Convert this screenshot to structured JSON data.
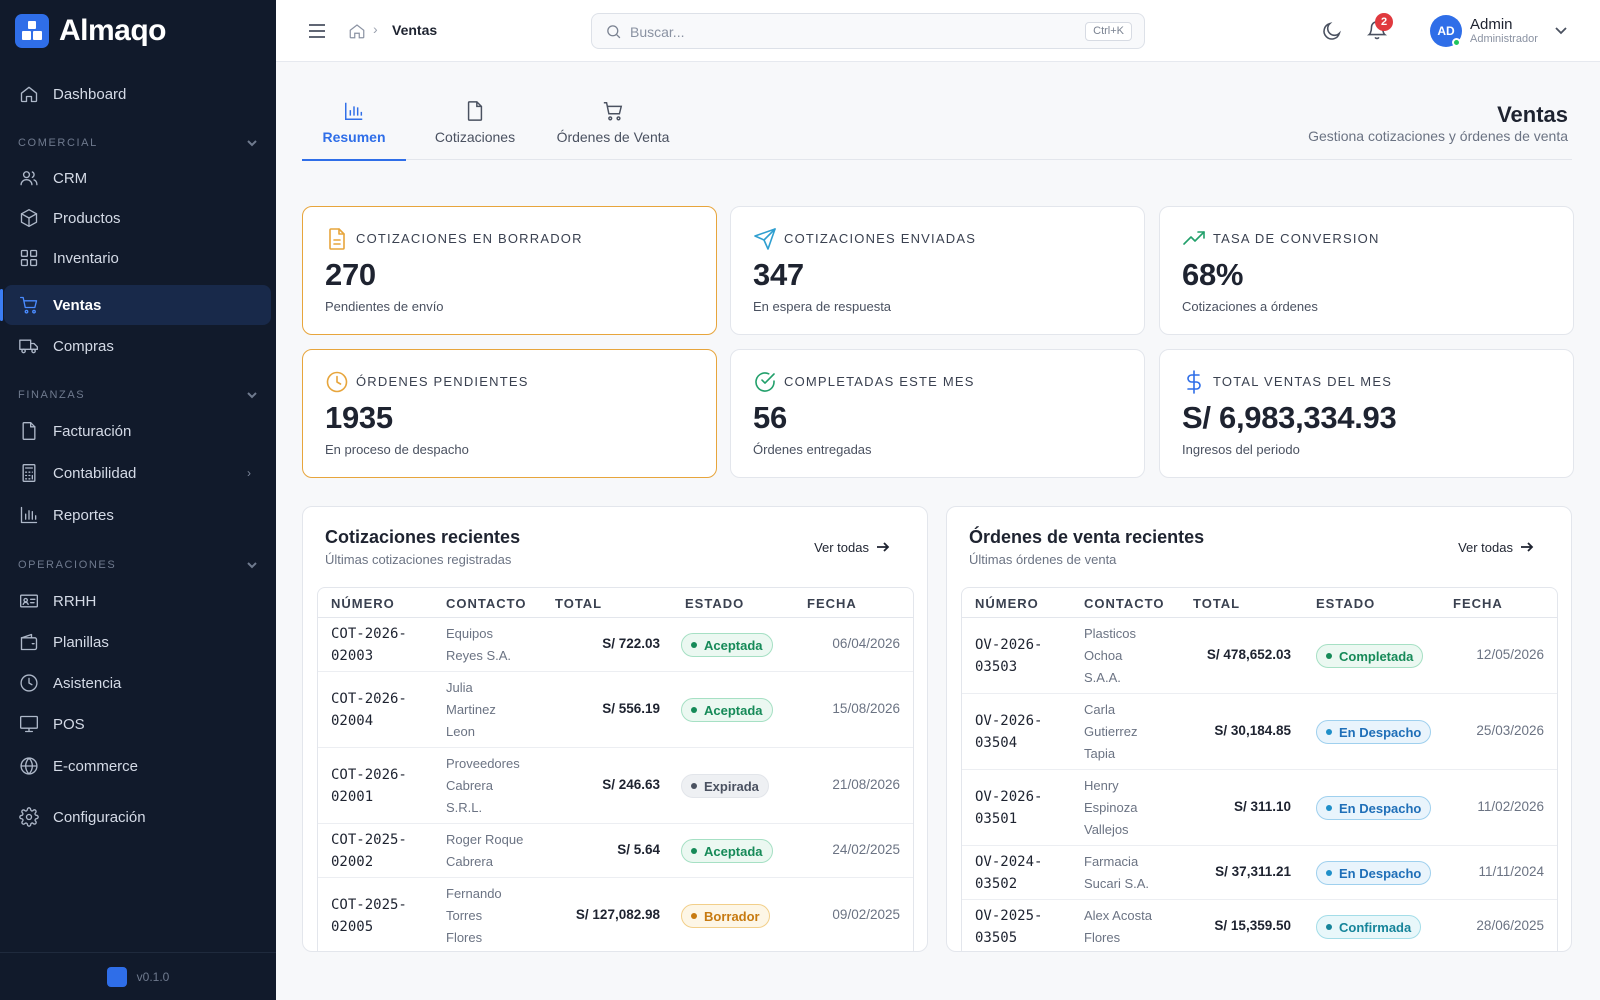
{
  "app": {
    "name": "Almaqo",
    "version": "v0.1.0"
  },
  "sidebar": {
    "items": [
      {
        "key": "dashboard",
        "label": "Dashboard",
        "icon": "home-icon"
      },
      {
        "key": "crm",
        "label": "CRM",
        "icon": "users-icon"
      },
      {
        "key": "productos",
        "label": "Productos",
        "icon": "box-icon"
      },
      {
        "key": "inventario",
        "label": "Inventario",
        "icon": "grid-icon"
      },
      {
        "key": "ventas",
        "label": "Ventas",
        "icon": "cart-icon",
        "active": true
      },
      {
        "key": "compras",
        "label": "Compras",
        "icon": "truck-icon"
      },
      {
        "key": "facturacion",
        "label": "Facturación",
        "icon": "file-icon"
      },
      {
        "key": "contabilidad",
        "label": "Contabilidad",
        "icon": "calculator-icon"
      },
      {
        "key": "reportes",
        "label": "Reportes",
        "icon": "bar-chart-icon"
      },
      {
        "key": "rrhh",
        "label": "RRHH",
        "icon": "id-card-icon"
      },
      {
        "key": "planillas",
        "label": "Planillas",
        "icon": "wallet-icon"
      },
      {
        "key": "asistencia",
        "label": "Asistencia",
        "icon": "clock-icon"
      },
      {
        "key": "pos",
        "label": "POS",
        "icon": "monitor-icon"
      },
      {
        "key": "ecommerce",
        "label": "E-commerce",
        "icon": "globe-icon"
      },
      {
        "key": "configuracion",
        "label": "Configuración",
        "icon": "gear-icon"
      }
    ],
    "sections": {
      "comercial": "COMERCIAL",
      "finanzas": "FINANZAS",
      "operaciones": "OPERACIONES"
    }
  },
  "topbar": {
    "breadcrumb_current": "Ventas",
    "search_placeholder": "Buscar...",
    "search_shortcut": "Ctrl+K",
    "notifications_count": "2",
    "user": {
      "initials": "AD",
      "name": "Admin",
      "role": "Administrador"
    }
  },
  "tabs": [
    {
      "label": "Resumen",
      "icon": "bar-chart-icon",
      "active": true
    },
    {
      "label": "Cotizaciones",
      "icon": "document-icon"
    },
    {
      "label": "Órdenes de Venta",
      "icon": "cart-icon"
    }
  ],
  "page": {
    "title": "Ventas",
    "subtitle": "Gestiona cotizaciones y órdenes de venta"
  },
  "stats": [
    {
      "title": "COTIZACIONES EN BORRADOR",
      "value": "270",
      "sub": "Pendientes de envío",
      "icon": "document-icon",
      "color": "#e7a53c"
    },
    {
      "title": "COTIZACIONES ENVIADAS",
      "value": "347",
      "sub": "En espera de respuesta",
      "icon": "send-icon",
      "color": "#2f9fd0"
    },
    {
      "title": "TASA DE CONVERSION",
      "value": "68%",
      "sub": "Cotizaciones a órdenes",
      "icon": "trending-up-icon",
      "color": "#22a06b"
    },
    {
      "title": "ÓRDENES PENDIENTES",
      "value": "1935",
      "sub": "En proceso de despacho",
      "icon": "clock-icon",
      "color": "#e7a53c"
    },
    {
      "title": "COMPLETADAS ESTE MES",
      "value": "56",
      "sub": "Órdenes entregadas",
      "icon": "check-circle-icon",
      "color": "#22a06b"
    },
    {
      "title": "TOTAL VENTAS DEL MES",
      "value": "S/ 6,983,334.93",
      "sub": "Ingresos del periodo",
      "icon": "dollar-icon",
      "color": "#2f6ee8"
    }
  ],
  "quotes": {
    "title": "Cotizaciones recientes",
    "subtitle": "Últimas cotizaciones registradas",
    "view_all": "Ver todas",
    "columns": [
      "NÚMERO",
      "CONTACTO",
      "TOTAL",
      "ESTADO",
      "FECHA"
    ],
    "rows": [
      {
        "number": [
          "COT-2026-",
          "02003"
        ],
        "contact": [
          "Equipos",
          "Reyes S.A."
        ],
        "total": "S/ 722.03",
        "status": "Aceptada",
        "status_color": "green",
        "date": "06/04/2026"
      },
      {
        "number": [
          "COT-2026-",
          "02004"
        ],
        "contact": [
          "Julia",
          "Martinez",
          "Leon"
        ],
        "total": "S/ 556.19",
        "status": "Aceptada",
        "status_color": "green",
        "date": "15/08/2026"
      },
      {
        "number": [
          "COT-2026-",
          "02001"
        ],
        "contact": [
          "Proveedores",
          "Cabrera",
          "S.R.L."
        ],
        "total": "S/ 246.63",
        "status": "Expirada",
        "status_color": "gray",
        "date": "21/08/2026"
      },
      {
        "number": [
          "COT-2025-",
          "02002"
        ],
        "contact": [
          "Roger Roque",
          "Cabrera"
        ],
        "total": "S/ 5.64",
        "status": "Aceptada",
        "status_color": "green",
        "date": "24/02/2025"
      },
      {
        "number": [
          "COT-2025-",
          "02005"
        ],
        "contact": [
          "Fernando",
          "Torres",
          "Flores"
        ],
        "total": "S/ 127,082.98",
        "status": "Borrador",
        "status_color": "amber",
        "date": "09/02/2025"
      }
    ]
  },
  "orders": {
    "title": "Órdenes de venta recientes",
    "subtitle": "Últimas órdenes de venta",
    "view_all": "Ver todas",
    "columns": [
      "NÚMERO",
      "CONTACTO",
      "TOTAL",
      "ESTADO",
      "FECHA"
    ],
    "rows": [
      {
        "number": [
          "OV-2026-",
          "03503"
        ],
        "contact": [
          "Plasticos",
          "Ochoa",
          "S.A.A."
        ],
        "total": "S/ 478,652.03",
        "status": "Completada",
        "status_color": "green",
        "date": "12/05/2026"
      },
      {
        "number": [
          "OV-2026-",
          "03504"
        ],
        "contact": [
          "Carla",
          "Gutierrez",
          "Tapia"
        ],
        "total": "S/ 30,184.85",
        "status": "En Despacho",
        "status_color": "blue",
        "date": "25/03/2026"
      },
      {
        "number": [
          "OV-2026-",
          "03501"
        ],
        "contact": [
          "Henry",
          "Espinoza",
          "Vallejos"
        ],
        "total": "S/ 311.10",
        "status": "En Despacho",
        "status_color": "blue",
        "date": "11/02/2026"
      },
      {
        "number": [
          "OV-2024-",
          "03502"
        ],
        "contact": [
          "Farmacia",
          "Sucari S.A."
        ],
        "total": "S/ 37,311.21",
        "status": "En Despacho",
        "status_color": "blue",
        "date": "11/11/2024"
      },
      {
        "number": [
          "OV-2025-",
          "03505"
        ],
        "contact": [
          "Alex Acosta",
          "Flores"
        ],
        "total": "S/ 15,359.50",
        "status": "Confirmada",
        "status_color": "cyan",
        "date": "28/06/2025"
      }
    ]
  }
}
